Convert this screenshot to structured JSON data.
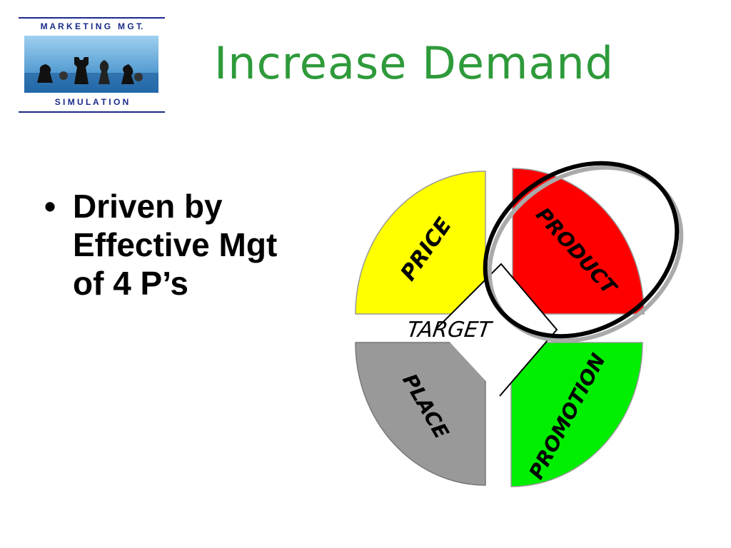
{
  "logo": {
    "top": "M A R K E T I N G   M G T.",
    "bottom": "S I M U L A T I O N"
  },
  "title": "Increase Demand",
  "bullets": [
    "Driven by Effective Mgt of 4 P’s"
  ],
  "diagram": {
    "segments": [
      {
        "label": "PRICE"
      },
      {
        "label": "PRODUCT"
      },
      {
        "label": "PLACE"
      },
      {
        "label": "PROMOTION"
      }
    ],
    "center": "TARGET"
  }
}
